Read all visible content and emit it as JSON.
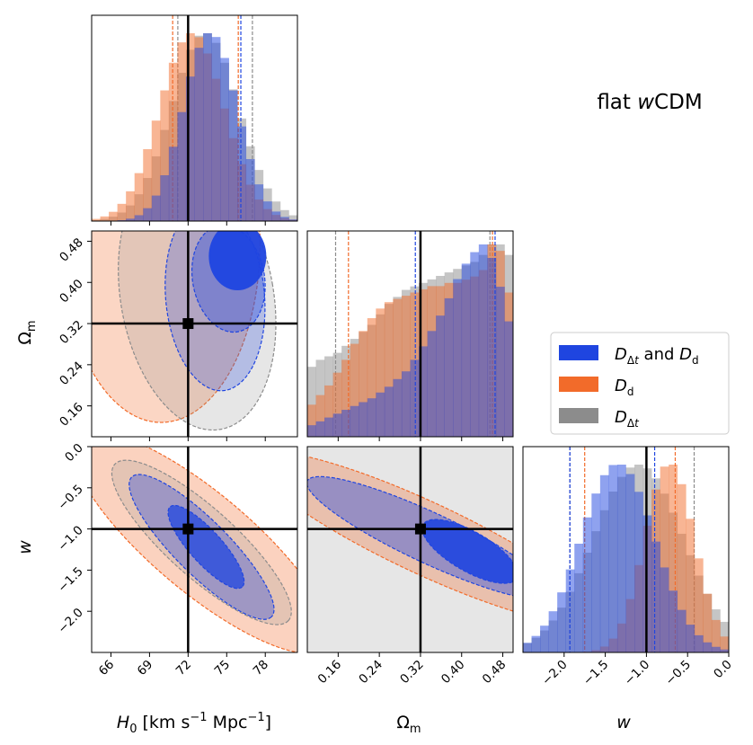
{
  "title": "flat wCDM",
  "title_parts": {
    "pre": "flat ",
    "it": "w",
    "post": "CDM"
  },
  "colors": {
    "both": "#1f45e0",
    "dd": "#f26b2a",
    "ddt": "#8c8c8c",
    "truth": "#000000"
  },
  "legend": [
    {
      "key": "both",
      "color": "#1f45e0"
    },
    {
      "key": "dd",
      "color": "#f26b2a"
    },
    {
      "key": "ddt",
      "color": "#8c8c8c"
    }
  ],
  "axis_labels": {
    "H0": "H₀ [km s⁻¹ Mpc⁻¹]",
    "Om": "Ωₘ",
    "w": "w"
  },
  "chart_data": {
    "type": "corner",
    "title": "flat wCDM",
    "parameters": [
      {
        "key": "H0",
        "label": "H₀ [km s⁻¹ Mpc⁻¹]",
        "range": [
          64.5,
          80.5
        ],
        "ticks": [
          66,
          69,
          72,
          75,
          78
        ],
        "truth": 72
      },
      {
        "key": "Om",
        "label": "Ωₘ",
        "range": [
          0.1,
          0.5
        ],
        "ticks": [
          0.16,
          0.24,
          0.32,
          0.4,
          0.48
        ],
        "truth": 0.32
      },
      {
        "key": "w",
        "label": "w",
        "range": [
          -2.5,
          0.0
        ],
        "ticks": [
          -2.0,
          -1.5,
          -1.0,
          -0.5,
          0.0
        ],
        "truth": -1.0
      }
    ],
    "series": [
      {
        "name": "D_Δt and D_d",
        "color": "#1f45e0",
        "H0": {
          "mean": 73.7,
          "sd": 2.1,
          "q": [
            72.0,
            76.1
          ]
        },
        "Om": {
          "q": [
            0.31,
            0.465
          ]
        },
        "w": {
          "mean": -1.35,
          "sd": 0.45,
          "q": [
            -1.93,
            -0.9
          ]
        },
        "Om_hist": [
          0.06,
          0.08,
          0.1,
          0.12,
          0.14,
          0.16,
          0.18,
          0.2,
          0.23,
          0.26,
          0.3,
          0.34,
          0.4,
          0.47,
          0.55,
          0.63,
          0.72,
          0.82,
          0.9,
          0.96,
          1.0,
          0.93,
          0.78,
          0.6
        ]
      },
      {
        "name": "D_d",
        "color": "#f26b2a",
        "H0": {
          "mean": 72.3,
          "sd": 2.5,
          "q": [
            70.8,
            75.9
          ]
        },
        "Om": {
          "q": [
            0.18,
            0.46
          ]
        },
        "w": {
          "mean": -0.72,
          "sd": 0.3,
          "q": [
            -1.75,
            -0.65
          ]
        },
        "Om_hist": [
          0.1,
          0.13,
          0.16,
          0.2,
          0.24,
          0.29,
          0.33,
          0.37,
          0.4,
          0.42,
          0.43,
          0.44,
          0.45,
          0.46,
          0.47,
          0.47,
          0.48,
          0.48,
          0.49,
          0.5,
          0.52,
          0.6,
          0.58,
          0.45
        ]
      },
      {
        "name": "D_Δt",
        "color": "#8c8c8c",
        "H0": {
          "mean": 73.3,
          "sd": 2.6,
          "q": [
            71.2,
            77.0
          ]
        },
        "Om": {
          "q": [
            0.155,
            0.455
          ]
        },
        "w": {
          "mean": -1.1,
          "sd": 0.55,
          "q": [
            -1.93,
            -0.42
          ]
        },
        "Om_hist": [
          0.2,
          0.22,
          0.23,
          0.24,
          0.26,
          0.28,
          0.3,
          0.32,
          0.35,
          0.38,
          0.4,
          0.42,
          0.43,
          0.44,
          0.45,
          0.46,
          0.47,
          0.48,
          0.49,
          0.5,
          0.52,
          0.55,
          0.55,
          0.52
        ]
      }
    ],
    "truth_point": {
      "H0": 72,
      "Om": 0.32,
      "w": -1.0
    },
    "contour_levels": [
      "68%",
      "95%"
    ]
  }
}
